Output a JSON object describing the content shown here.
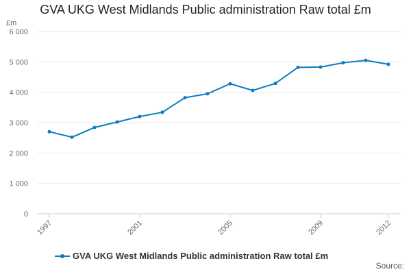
{
  "chart_data": {
    "type": "line",
    "title": "GVA UKG West Midlands Public administration Raw total £m",
    "ylabel": "£m",
    "xlabel": "",
    "x": [
      1997,
      1998,
      1999,
      2000,
      2001,
      2002,
      2003,
      2004,
      2005,
      2006,
      2007,
      2008,
      2009,
      2010,
      2011,
      2012
    ],
    "x_tick_labels": [
      "1997",
      "2001",
      "2005",
      "2009",
      "2012"
    ],
    "y_tick_labels": [
      "0",
      "1 000",
      "2 000",
      "3 000",
      "4 000",
      "5 000",
      "6 000"
    ],
    "ylim": [
      0,
      6000
    ],
    "grid": true,
    "legend_position": "bottom-left",
    "series": [
      {
        "name": "GVA UKG West Midlands Public administration Raw total £m",
        "color": "#0b7dbd",
        "values": [
          2700,
          2520,
          2840,
          3020,
          3200,
          3340,
          3820,
          3950,
          4280,
          4060,
          4290,
          4820,
          4830,
          4970,
          5050,
          4920
        ]
      }
    ]
  },
  "source_label": "Source:"
}
